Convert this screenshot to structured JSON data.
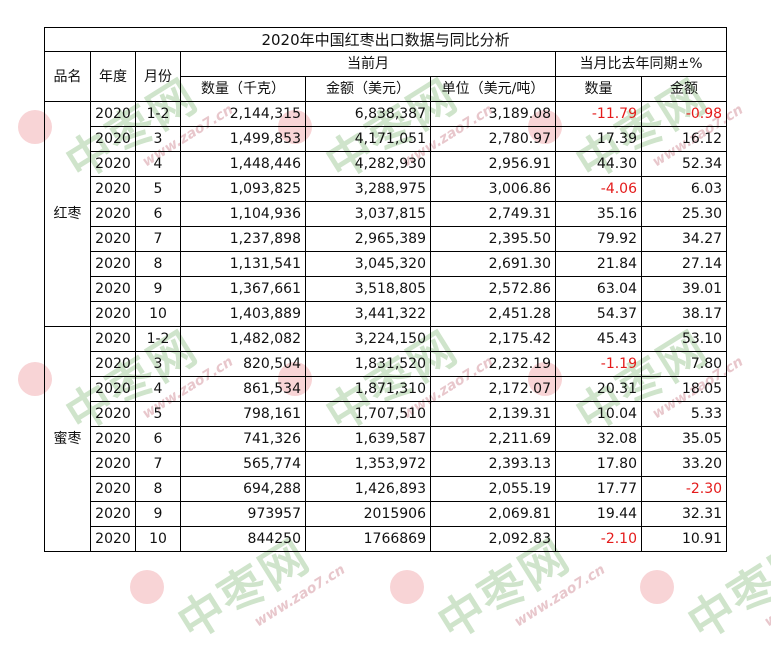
{
  "title": "2020年中国红枣出口数据与同比分析",
  "headers": {
    "product": "品名",
    "year": "年度",
    "month": "月份",
    "current_month": "当前月",
    "yoy": "当月比去年同期±%",
    "qty": "数量（千克）",
    "amount": "金额（美元）",
    "unit": "单位（美元/吨）",
    "yoy_qty": "数量",
    "yoy_amount": "金额"
  },
  "groups": [
    {
      "name": "红枣",
      "rows": [
        {
          "year": "2020",
          "month": "1-2",
          "qty": "2,144,315",
          "amount": "6,838,387",
          "unit": "3,189.08",
          "yoy_qty": "-11.79",
          "yoy_amount": "-0.98"
        },
        {
          "year": "2020",
          "month": "3",
          "qty": "1,499,853",
          "amount": "4,171,051",
          "unit": "2,780.97",
          "yoy_qty": "17.39",
          "yoy_amount": "16.12"
        },
        {
          "year": "2020",
          "month": "4",
          "qty": "1,448,446",
          "amount": "4,282,930",
          "unit": "2,956.91",
          "yoy_qty": "44.30",
          "yoy_amount": "52.34"
        },
        {
          "year": "2020",
          "month": "5",
          "qty": "1,093,825",
          "amount": "3,288,975",
          "unit": "3,006.86",
          "yoy_qty": "-4.06",
          "yoy_amount": "6.03"
        },
        {
          "year": "2020",
          "month": "6",
          "qty": "1,104,936",
          "amount": "3,037,815",
          "unit": "2,749.31",
          "yoy_qty": "35.16",
          "yoy_amount": "25.30"
        },
        {
          "year": "2020",
          "month": "7",
          "qty": "1,237,898",
          "amount": "2,965,389",
          "unit": "2,395.50",
          "yoy_qty": "79.92",
          "yoy_amount": "34.27"
        },
        {
          "year": "2020",
          "month": "8",
          "qty": "1,131,541",
          "amount": "3,045,320",
          "unit": "2,691.30",
          "yoy_qty": "21.84",
          "yoy_amount": "27.14"
        },
        {
          "year": "2020",
          "month": "9",
          "qty": "1,367,661",
          "amount": "3,518,805",
          "unit": "2,572.86",
          "yoy_qty": "63.04",
          "yoy_amount": "39.01"
        },
        {
          "year": "2020",
          "month": "10",
          "qty": "1,403,889",
          "amount": "3,441,322",
          "unit": "2,451.28",
          "yoy_qty": "54.37",
          "yoy_amount": "38.17"
        }
      ]
    },
    {
      "name": "蜜枣",
      "rows": [
        {
          "year": "2020",
          "month": "1-2",
          "qty": "1,482,082",
          "amount": "3,224,150",
          "unit": "2,175.42",
          "yoy_qty": "45.43",
          "yoy_amount": "53.10"
        },
        {
          "year": "2020",
          "month": "3",
          "qty": "820,504",
          "amount": "1,831,520",
          "unit": "2,232.19",
          "yoy_qty": "-1.19",
          "yoy_amount": "7.80"
        },
        {
          "year": "2020",
          "month": "4",
          "qty": "861,534",
          "amount": "1,871,310",
          "unit": "2,172.07",
          "yoy_qty": "20.31",
          "yoy_amount": "18.05"
        },
        {
          "year": "2020",
          "month": "5",
          "qty": "798,161",
          "amount": "1,707,510",
          "unit": "2,139.31",
          "yoy_qty": "10.04",
          "yoy_amount": "5.33"
        },
        {
          "year": "2020",
          "month": "6",
          "qty": "741,326",
          "amount": "1,639,587",
          "unit": "2,211.69",
          "yoy_qty": "32.08",
          "yoy_amount": "35.05"
        },
        {
          "year": "2020",
          "month": "7",
          "qty": "565,774",
          "amount": "1,353,972",
          "unit": "2,393.13",
          "yoy_qty": "17.80",
          "yoy_amount": "33.20"
        },
        {
          "year": "2020",
          "month": "8",
          "qty": "694,288",
          "amount": "1,426,893",
          "unit": "2,055.19",
          "yoy_qty": "17.77",
          "yoy_amount": "-2.30"
        },
        {
          "year": "2020",
          "month": "9",
          "qty": "973957",
          "amount": "2015906",
          "unit": "2,069.81",
          "yoy_qty": "19.44",
          "yoy_amount": "32.31"
        },
        {
          "year": "2020",
          "month": "10",
          "qty": "844250",
          "amount": "1766869",
          "unit": "2,092.83",
          "yoy_qty": "-2.10",
          "yoy_amount": "10.91"
        }
      ]
    }
  ],
  "watermark": {
    "text": "中枣网",
    "url": "www.zao7.cn"
  },
  "colors": {
    "negative": "#e41b1b",
    "watermark_green": "#cfe4cb",
    "watermark_pink": "#f6c9cc"
  }
}
